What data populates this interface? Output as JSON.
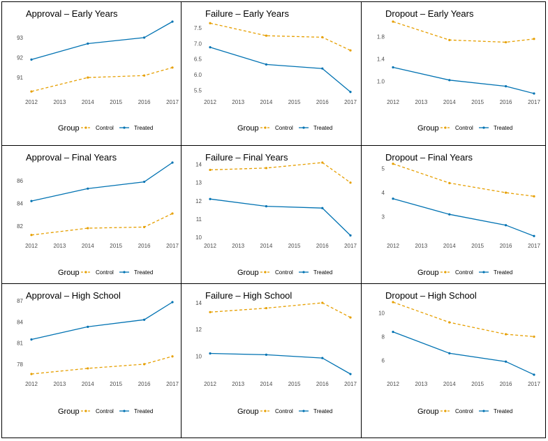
{
  "legend": {
    "title": "Group",
    "control_label": "Control",
    "treated_label": "Treated"
  },
  "colors": {
    "control": "#E69F00",
    "treated": "#0072B2"
  },
  "chart_data": [
    {
      "type": "line",
      "title": "Approval – Early Years",
      "xlabel": "",
      "ylabel": "",
      "x": [
        2012,
        2014,
        2016,
        2017
      ],
      "x_ticks": [
        2012,
        2013,
        2014,
        2015,
        2016,
        2017
      ],
      "y_ticks": [
        91,
        92,
        93
      ],
      "ylim": [
        90.2,
        93.8
      ],
      "grid": false,
      "legend_position": "bottom",
      "series": [
        {
          "name": "Control",
          "style": "dashed",
          "values": [
            90.3,
            91.0,
            91.1,
            91.5
          ]
        },
        {
          "name": "Treated",
          "style": "solid",
          "values": [
            91.9,
            92.7,
            93.0,
            93.8
          ]
        }
      ]
    },
    {
      "type": "line",
      "title": "Failure – Early Years",
      "xlabel": "",
      "ylabel": "",
      "x": [
        2012,
        2014,
        2016,
        2017
      ],
      "x_ticks": [
        2012,
        2013,
        2014,
        2015,
        2016,
        2017
      ],
      "y_ticks": [
        5.5,
        6.0,
        6.5,
        7.0,
        7.5
      ],
      "ylim": [
        5.4,
        7.7
      ],
      "grid": false,
      "legend_position": "bottom",
      "series": [
        {
          "name": "Control",
          "style": "dashed",
          "values": [
            7.65,
            7.25,
            7.2,
            6.78
          ]
        },
        {
          "name": "Treated",
          "style": "solid",
          "values": [
            6.88,
            6.33,
            6.2,
            5.45
          ]
        }
      ]
    },
    {
      "type": "line",
      "title": "Dropout – Early Years",
      "xlabel": "",
      "ylabel": "",
      "x": [
        2012,
        2014,
        2016,
        2017
      ],
      "x_ticks": [
        2012,
        2013,
        2014,
        2015,
        2016,
        2017
      ],
      "y_ticks": [
        1.0,
        1.4,
        1.8
      ],
      "ylim": [
        0.78,
        2.07
      ],
      "grid": false,
      "legend_position": "bottom",
      "series": [
        {
          "name": "Control",
          "style": "dashed",
          "values": [
            2.07,
            1.74,
            1.7,
            1.76
          ]
        },
        {
          "name": "Treated",
          "style": "solid",
          "values": [
            1.25,
            1.02,
            0.91,
            0.78
          ]
        }
      ]
    },
    {
      "type": "line",
      "title": "Approval – Final Years",
      "xlabel": "",
      "ylabel": "",
      "x": [
        2012,
        2014,
        2016,
        2017
      ],
      "x_ticks": [
        2012,
        2013,
        2014,
        2015,
        2016,
        2017
      ],
      "y_ticks": [
        82,
        84,
        86
      ],
      "ylim": [
        81.0,
        87.6
      ],
      "grid": false,
      "legend_position": "bottom",
      "series": [
        {
          "name": "Control",
          "style": "dashed",
          "values": [
            81.2,
            81.8,
            81.9,
            83.1
          ]
        },
        {
          "name": "Treated",
          "style": "solid",
          "values": [
            84.2,
            85.3,
            85.9,
            87.6
          ]
        }
      ]
    },
    {
      "type": "line",
      "title": "Failure – Final Years",
      "xlabel": "",
      "ylabel": "",
      "x": [
        2012,
        2014,
        2016,
        2017
      ],
      "x_ticks": [
        2012,
        2013,
        2014,
        2015,
        2016,
        2017
      ],
      "y_ticks": [
        10,
        11,
        12,
        13,
        14
      ],
      "ylim": [
        10.0,
        14.1
      ],
      "grid": false,
      "legend_position": "bottom",
      "series": [
        {
          "name": "Control",
          "style": "dashed",
          "values": [
            13.7,
            13.8,
            14.1,
            13.0
          ]
        },
        {
          "name": "Treated",
          "style": "solid",
          "values": [
            12.1,
            11.7,
            11.6,
            10.1
          ]
        }
      ]
    },
    {
      "type": "line",
      "title": "Dropout – Final Years",
      "xlabel": "",
      "ylabel": "",
      "x": [
        2012,
        2014,
        2016,
        2017
      ],
      "x_ticks": [
        2012,
        2013,
        2014,
        2015,
        2016,
        2017
      ],
      "y_ticks": [
        3,
        4,
        5
      ],
      "ylim": [
        2.15,
        5.25
      ],
      "grid": false,
      "legend_position": "bottom",
      "series": [
        {
          "name": "Control",
          "style": "dashed",
          "values": [
            5.2,
            4.4,
            4.0,
            3.85
          ]
        },
        {
          "name": "Treated",
          "style": "solid",
          "values": [
            3.75,
            3.1,
            2.65,
            2.2
          ]
        }
      ]
    },
    {
      "type": "line",
      "title": "Approval – High School",
      "xlabel": "",
      "ylabel": "",
      "x": [
        2012,
        2014,
        2016,
        2017
      ],
      "x_ticks": [
        2012,
        2013,
        2014,
        2015,
        2016,
        2017
      ],
      "y_ticks": [
        78,
        81,
        84,
        87
      ],
      "ylim": [
        76.5,
        86.8
      ],
      "grid": false,
      "legend_position": "bottom",
      "series": [
        {
          "name": "Control",
          "style": "dashed",
          "values": [
            76.6,
            77.4,
            78.0,
            79.1
          ]
        },
        {
          "name": "Treated",
          "style": "solid",
          "values": [
            81.5,
            83.3,
            84.3,
            86.8
          ]
        }
      ]
    },
    {
      "type": "line",
      "title": "Failure – High School",
      "xlabel": "",
      "ylabel": "",
      "x": [
        2012,
        2014,
        2016,
        2017
      ],
      "x_ticks": [
        2012,
        2013,
        2014,
        2015,
        2016,
        2017
      ],
      "y_ticks": [
        10,
        12,
        14
      ],
      "ylim": [
        8.6,
        14.05
      ],
      "grid": false,
      "legend_position": "bottom",
      "series": [
        {
          "name": "Control",
          "style": "dashed",
          "values": [
            13.3,
            13.6,
            14.0,
            12.9
          ]
        },
        {
          "name": "Treated",
          "style": "solid",
          "values": [
            10.2,
            10.1,
            9.85,
            8.65
          ]
        }
      ]
    },
    {
      "type": "line",
      "title": "Dropout – High School",
      "xlabel": "",
      "ylabel": "",
      "x": [
        2012,
        2014,
        2016,
        2017
      ],
      "x_ticks": [
        2012,
        2013,
        2014,
        2015,
        2016,
        2017
      ],
      "y_ticks": [
        6,
        8,
        10
      ],
      "ylim": [
        4.8,
        10.9
      ],
      "grid": false,
      "legend_position": "bottom",
      "series": [
        {
          "name": "Control",
          "style": "dashed",
          "values": [
            10.9,
            9.2,
            8.2,
            8.0
          ]
        },
        {
          "name": "Treated",
          "style": "solid",
          "values": [
            8.4,
            6.6,
            5.9,
            4.8
          ]
        }
      ]
    }
  ]
}
